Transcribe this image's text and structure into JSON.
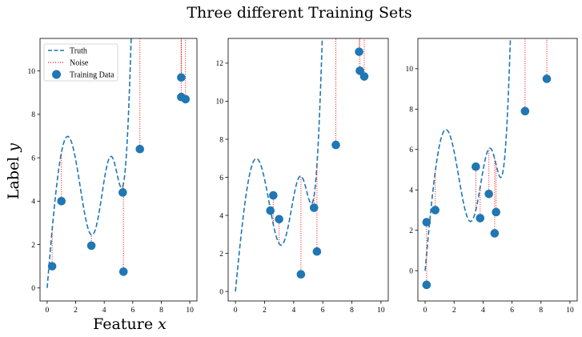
{
  "figure": {
    "title": "Three different Training Sets"
  },
  "legend": {
    "placement": "top-left",
    "items": [
      {
        "label": "Truth",
        "style": "dashed"
      },
      {
        "label": "Noise",
        "style": "dotted"
      },
      {
        "label": "Training Data",
        "style": "marker"
      }
    ]
  },
  "colors": {
    "truth": "#1f77b4",
    "points": "#1f77b4",
    "noise": "#ff0000"
  },
  "chart_data": [
    {
      "type": "scatter",
      "xlabel": "Feature x",
      "ylabel": "Label y",
      "xlim": [
        -0.5,
        10.5
      ],
      "ylim": [
        -0.6,
        11.5
      ],
      "xticks": [
        0,
        2,
        4,
        6,
        8,
        10
      ],
      "yticks": [
        0,
        2,
        4,
        6,
        8,
        10
      ],
      "legend": true,
      "points": [
        {
          "x": 0.35,
          "y": 1.0
        },
        {
          "x": 1.0,
          "y": 4.0
        },
        {
          "x": 3.1,
          "y": 1.95
        },
        {
          "x": 5.3,
          "y": 4.4
        },
        {
          "x": 5.35,
          "y": 0.75
        },
        {
          "x": 6.5,
          "y": 6.4
        },
        {
          "x": 9.4,
          "y": 9.7
        },
        {
          "x": 9.4,
          "y": 8.8
        },
        {
          "x": 9.7,
          "y": 8.7
        }
      ]
    },
    {
      "type": "scatter",
      "xlabel": "",
      "ylabel": "",
      "xlim": [
        -0.5,
        10.5
      ],
      "ylim": [
        -0.5,
        13.3
      ],
      "xticks": [
        0,
        2,
        4,
        6,
        8,
        10
      ],
      "yticks": [
        0,
        2,
        4,
        6,
        8,
        10,
        12
      ],
      "legend": false,
      "points": [
        {
          "x": 2.4,
          "y": 4.25
        },
        {
          "x": 2.6,
          "y": 5.05
        },
        {
          "x": 3.0,
          "y": 3.8
        },
        {
          "x": 4.5,
          "y": 0.9
        },
        {
          "x": 5.4,
          "y": 4.4
        },
        {
          "x": 5.6,
          "y": 2.1
        },
        {
          "x": 6.9,
          "y": 7.7
        },
        {
          "x": 8.5,
          "y": 12.6
        },
        {
          "x": 8.55,
          "y": 11.6
        },
        {
          "x": 8.85,
          "y": 11.3
        }
      ]
    },
    {
      "type": "scatter",
      "xlabel": "",
      "ylabel": "",
      "xlim": [
        -0.5,
        10.5
      ],
      "ylim": [
        -1.5,
        11.5
      ],
      "xticks": [
        0,
        2,
        4,
        6,
        8,
        10
      ],
      "yticks": [
        0,
        2,
        4,
        6,
        8,
        10
      ],
      "legend": false,
      "points": [
        {
          "x": 0.1,
          "y": -0.7
        },
        {
          "x": 0.1,
          "y": 2.4
        },
        {
          "x": 0.7,
          "y": 3.0
        },
        {
          "x": 3.5,
          "y": 5.15
        },
        {
          "x": 3.8,
          "y": 2.6
        },
        {
          "x": 4.4,
          "y": 3.8
        },
        {
          "x": 4.8,
          "y": 1.85
        },
        {
          "x": 4.9,
          "y": 2.9
        },
        {
          "x": 6.9,
          "y": 7.9
        },
        {
          "x": 8.4,
          "y": 9.5
        }
      ]
    }
  ]
}
